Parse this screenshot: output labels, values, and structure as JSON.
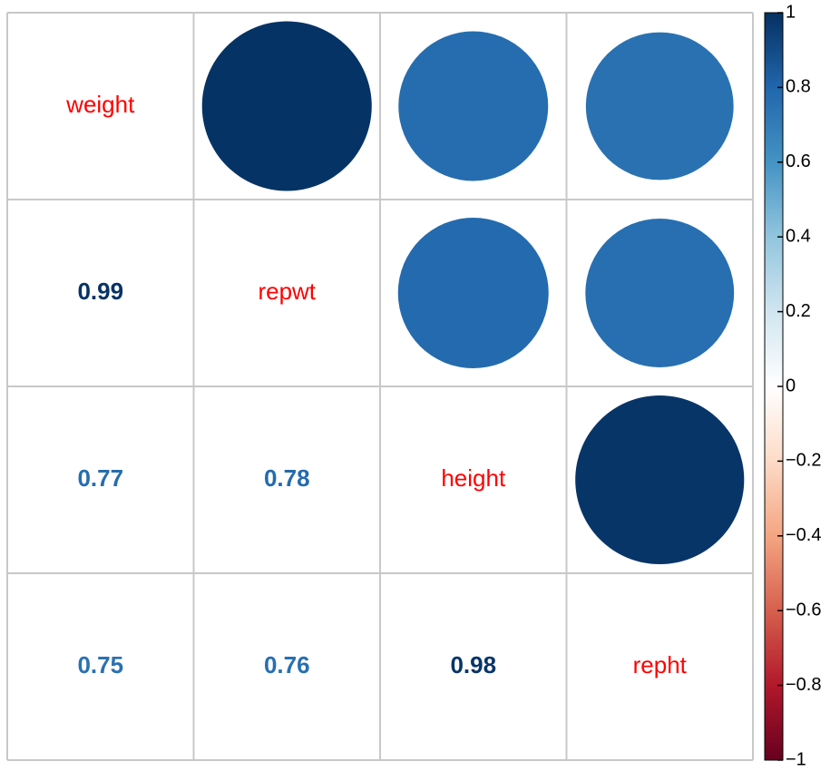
{
  "chart_data": {
    "type": "corrplot",
    "variables": [
      "weight",
      "repwt",
      "height",
      "repht"
    ],
    "correlations": [
      [
        0.99
      ],
      [
        0.77,
        0.78
      ],
      [
        0.75,
        0.76,
        0.98
      ]
    ],
    "label_color": "#ff0000",
    "colormap": [
      "#67001F",
      "#B2182B",
      "#D6604D",
      "#F4A582",
      "#FDDBC7",
      "#FFFFFF",
      "#D1E5F0",
      "#92C5DE",
      "#4393C3",
      "#2166AC",
      "#053061"
    ],
    "clim": [
      -1,
      1
    ],
    "cticks": [
      {
        "value": -1,
        "label": "−1"
      },
      {
        "value": -0.8,
        "label": "−0.8"
      },
      {
        "value": -0.6,
        "label": "−0.6"
      },
      {
        "value": -0.4,
        "label": "−0.4"
      },
      {
        "value": -0.2,
        "label": "−0.2"
      },
      0,
      0.2,
      0.4,
      0.6,
      0.8,
      1
    ]
  }
}
